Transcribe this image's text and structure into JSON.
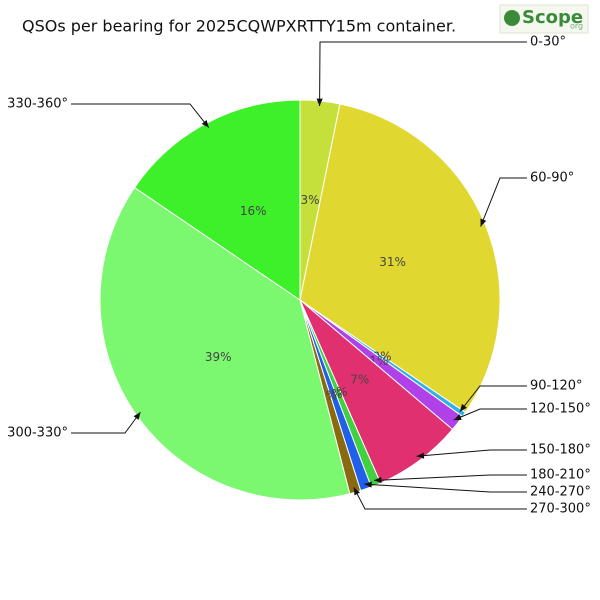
{
  "chart_data": {
    "type": "pie",
    "title": "QSOs per bearing for 2025CQWPXRTTY15m container.",
    "logo": "Scope",
    "logo_suffix": "org",
    "categories": [
      "0-30°",
      "60-90°",
      "90-120°",
      "120-150°",
      "150-180°",
      "180-210°",
      "240-270°",
      "270-300°",
      "300-330°",
      "330-360°"
    ],
    "values": [
      3.2,
      31.3,
      0.4,
      1.3,
      7.2,
      0.8,
      0.9,
      0.9,
      38.5,
      15.5
    ],
    "value_labels": [
      "3%",
      "31%",
      "0%",
      "1%",
      "7%",
      "1%",
      "1%",
      "1%",
      "39%",
      "16%"
    ],
    "colors": [
      "#c5e03a",
      "#e0d830",
      "#30b0e8",
      "#b040e8",
      "#e03070",
      "#40d040",
      "#2060e8",
      "#8a6a10",
      "#7cf870",
      "#3ef02a"
    ]
  }
}
